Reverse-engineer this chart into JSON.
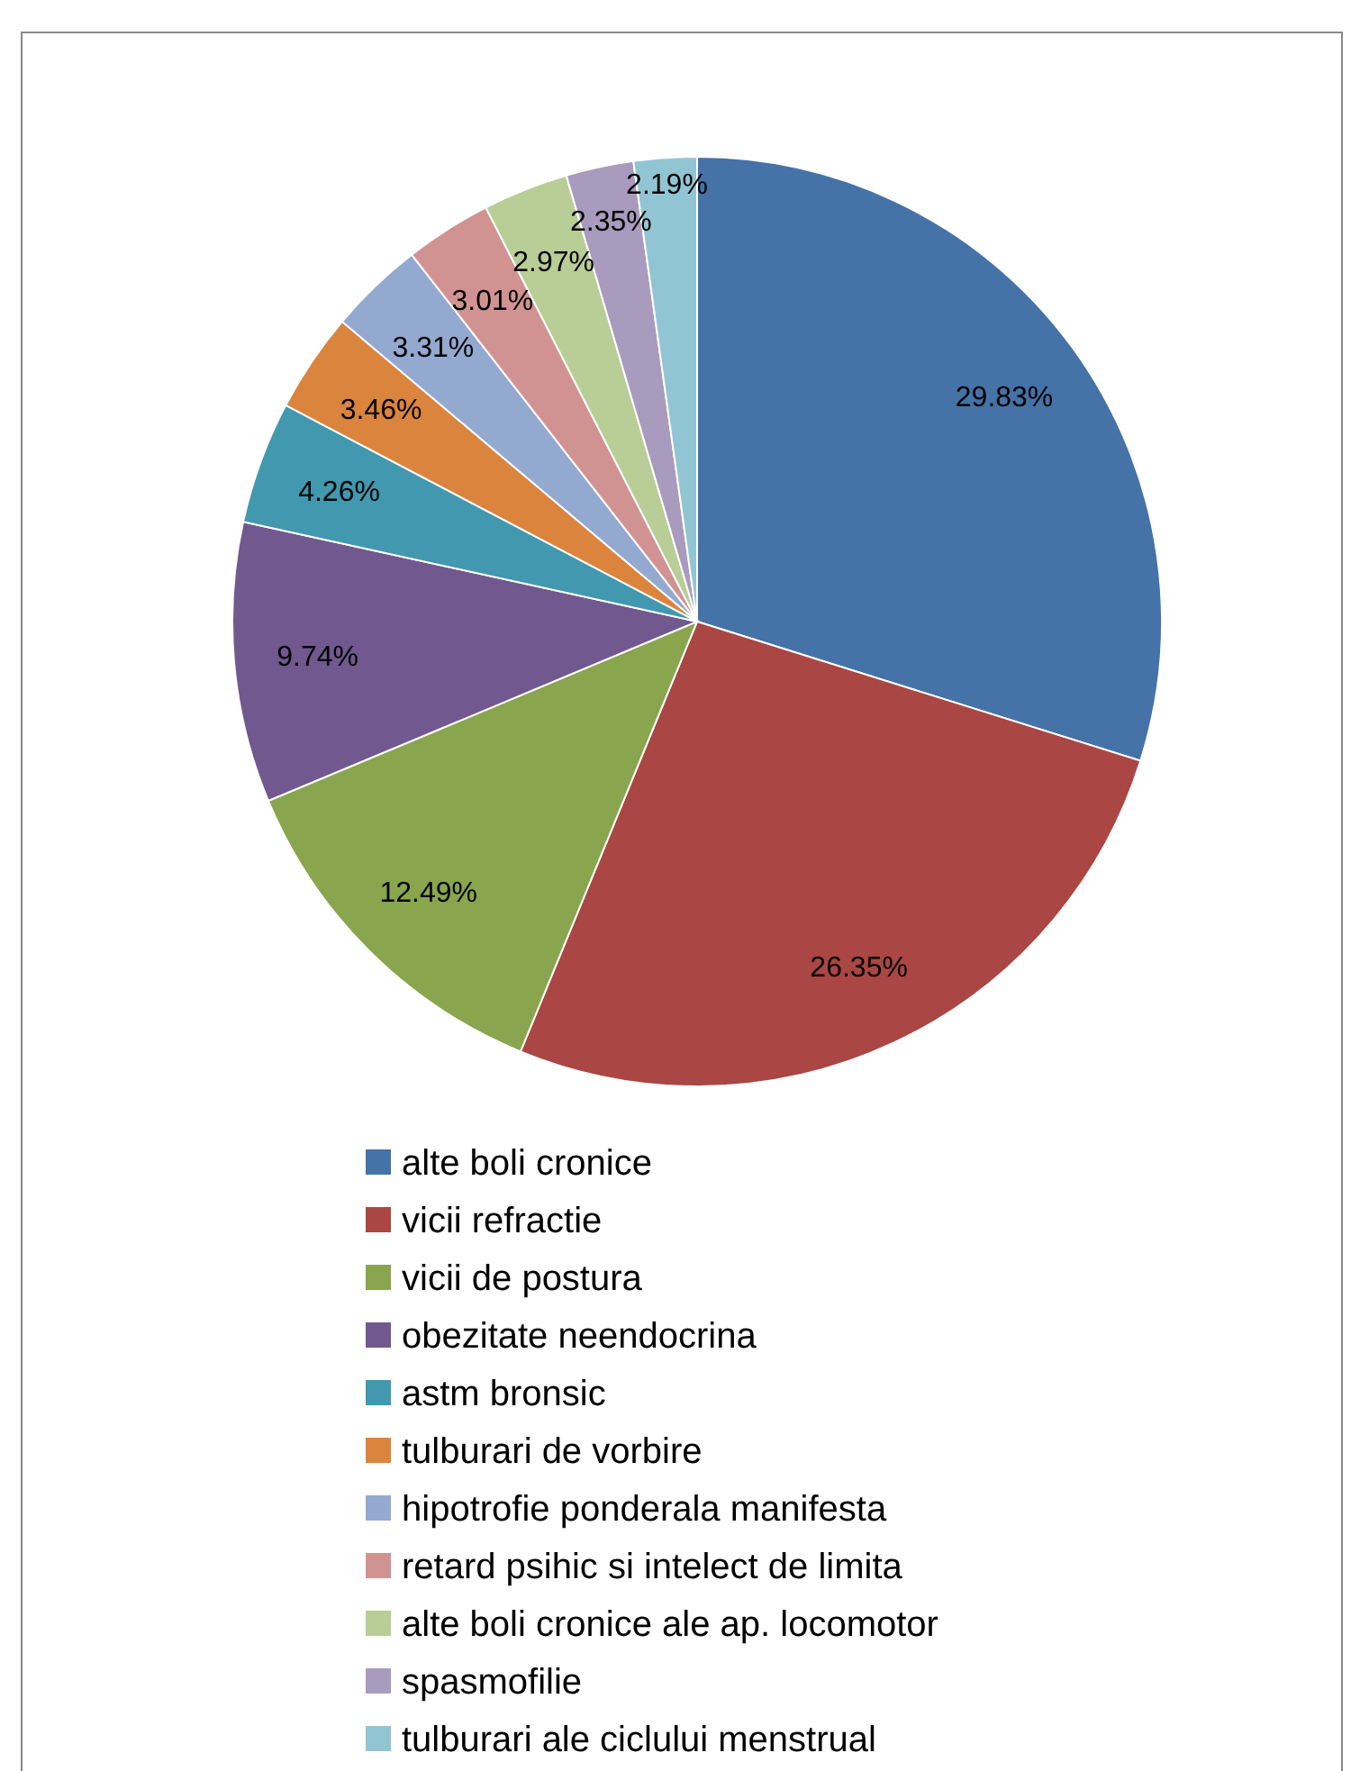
{
  "chart_data": {
    "type": "pie",
    "categories": [
      "alte boli cronice",
      "vicii refractie",
      "vicii de postura",
      "obezitate neendocrina",
      "astm bronsic",
      "tulburari de vorbire",
      "hipotrofie ponderala manifesta",
      "retard psihic si intelect de limita",
      "alte boli cronice ale ap. locomotor",
      "spasmofilie",
      "tulburari ale ciclului menstrual"
    ],
    "values": [
      29.83,
      26.35,
      12.49,
      9.74,
      4.26,
      3.46,
      3.31,
      3.01,
      2.97,
      2.35,
      2.19
    ],
    "value_labels": [
      "29.83%",
      "26.35%",
      "12.49%",
      "9.74%",
      "4.26%",
      "3.46%",
      "3.31%",
      "3.01%",
      "2.97%",
      "2.35%",
      "2.19%"
    ],
    "colors": [
      "#4572a7",
      "#aa4643",
      "#89a54e",
      "#71588f",
      "#4198af",
      "#db843d",
      "#93a9cf",
      "#d19392",
      "#b9cd96",
      "#a99bbd",
      "#92c5d3"
    ],
    "legend": "bottom"
  }
}
